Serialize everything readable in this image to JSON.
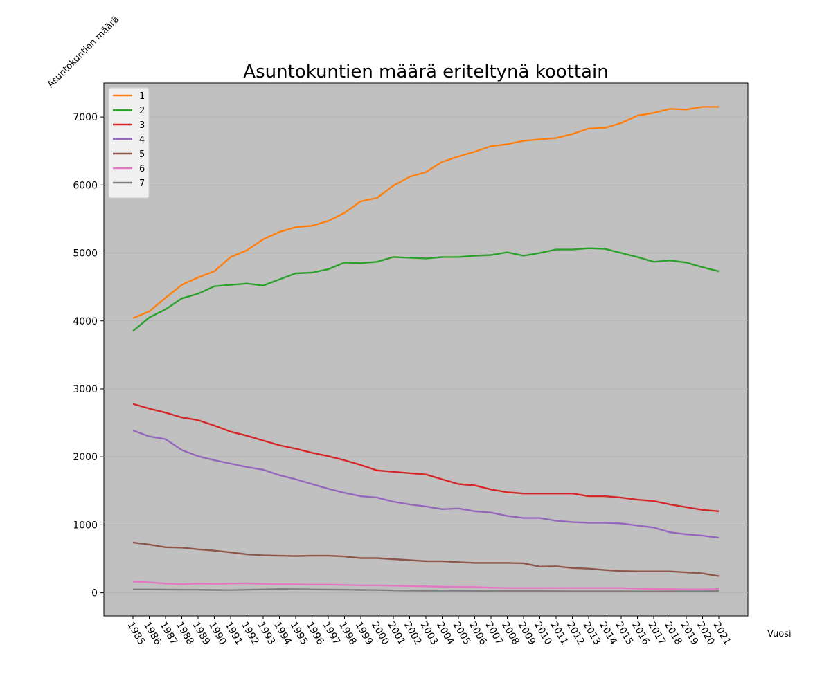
{
  "chart_data": {
    "type": "line",
    "title": "Asuntokuntien määrä eriteltynä koottain",
    "xlabel": "Vuosi",
    "ylabel": "Asuntokuntien määrä",
    "ylim": [
      -340,
      7500
    ],
    "yticks": [
      0,
      1000,
      2000,
      3000,
      4000,
      5000,
      6000,
      7000
    ],
    "y_grid": true,
    "legend_position": "top-left",
    "x": [
      "1985",
      "1986",
      "1987",
      "1988",
      "1989",
      "1990",
      "1991",
      "1992",
      "1993",
      "1994",
      "1995",
      "1996",
      "1997",
      "1998",
      "1999",
      "2000",
      "2001",
      "2002",
      "2003",
      "2004",
      "2005",
      "2006",
      "2007",
      "2008",
      "2009",
      "2010",
      "2011",
      "2012",
      "2013",
      "2014",
      "2015",
      "2016",
      "2017",
      "2018",
      "2019",
      "2020",
      "2021"
    ],
    "series": [
      {
        "name": "1",
        "color": "#ff7f0e",
        "values": [
          4040,
          4140,
          4340,
          4530,
          4640,
          4730,
          4940,
          5040,
          5200,
          5310,
          5380,
          5400,
          5470,
          5590,
          5760,
          5810,
          5990,
          6120,
          6190,
          6340,
          6420,
          6490,
          6570,
          6600,
          6650,
          6670,
          6690,
          6750,
          6830,
          6840,
          6910,
          7020,
          7060,
          7120,
          7110,
          7150,
          7150
        ]
      },
      {
        "name": "2",
        "color": "#2ca02c",
        "values": [
          3850,
          4050,
          4170,
          4330,
          4400,
          4510,
          4530,
          4550,
          4520,
          4610,
          4700,
          4710,
          4760,
          4860,
          4850,
          4870,
          4940,
          4930,
          4920,
          4940,
          4940,
          4960,
          4970,
          5010,
          4960,
          5000,
          5050,
          5050,
          5070,
          5060,
          5000,
          4940,
          4870,
          4890,
          4860,
          4790,
          4730
        ]
      },
      {
        "name": "3",
        "color": "#d62728",
        "values": [
          2780,
          2710,
          2650,
          2580,
          2540,
          2460,
          2370,
          2310,
          2240,
          2170,
          2120,
          2060,
          2010,
          1950,
          1880,
          1800,
          1780,
          1760,
          1740,
          1670,
          1600,
          1580,
          1520,
          1480,
          1460,
          1460,
          1460,
          1460,
          1420,
          1420,
          1400,
          1370,
          1350,
          1300,
          1260,
          1220,
          1200
        ]
      },
      {
        "name": "4",
        "color": "#9467bd",
        "values": [
          2390,
          2300,
          2260,
          2100,
          2010,
          1950,
          1900,
          1850,
          1810,
          1730,
          1670,
          1600,
          1530,
          1470,
          1420,
          1400,
          1340,
          1300,
          1270,
          1230,
          1240,
          1200,
          1180,
          1130,
          1100,
          1100,
          1060,
          1040,
          1030,
          1030,
          1020,
          990,
          960,
          890,
          860,
          840,
          810
        ]
      },
      {
        "name": "5",
        "color": "#8c564b",
        "values": [
          740,
          710,
          670,
          665,
          640,
          620,
          595,
          565,
          550,
          545,
          540,
          545,
          545,
          535,
          510,
          510,
          495,
          480,
          465,
          465,
          450,
          440,
          440,
          440,
          435,
          385,
          390,
          365,
          355,
          335,
          320,
          315,
          315,
          315,
          300,
          285,
          245
        ]
      },
      {
        "name": "6",
        "color": "#e377c2",
        "values": [
          165,
          155,
          135,
          125,
          135,
          130,
          135,
          140,
          130,
          125,
          125,
          120,
          120,
          115,
          110,
          110,
          105,
          100,
          95,
          90,
          85,
          85,
          75,
          70,
          70,
          70,
          70,
          70,
          70,
          70,
          70,
          60,
          55,
          55,
          50,
          50,
          55
        ]
      },
      {
        "name": "7",
        "color": "#7f7f7f",
        "values": [
          50,
          50,
          48,
          45,
          45,
          42,
          40,
          45,
          50,
          55,
          52,
          50,
          48,
          45,
          42,
          40,
          35,
          32,
          30,
          32,
          30,
          28,
          28,
          28,
          28,
          28,
          25,
          22,
          22,
          22,
          22,
          20,
          20,
          22,
          22,
          22,
          25
        ]
      }
    ]
  }
}
